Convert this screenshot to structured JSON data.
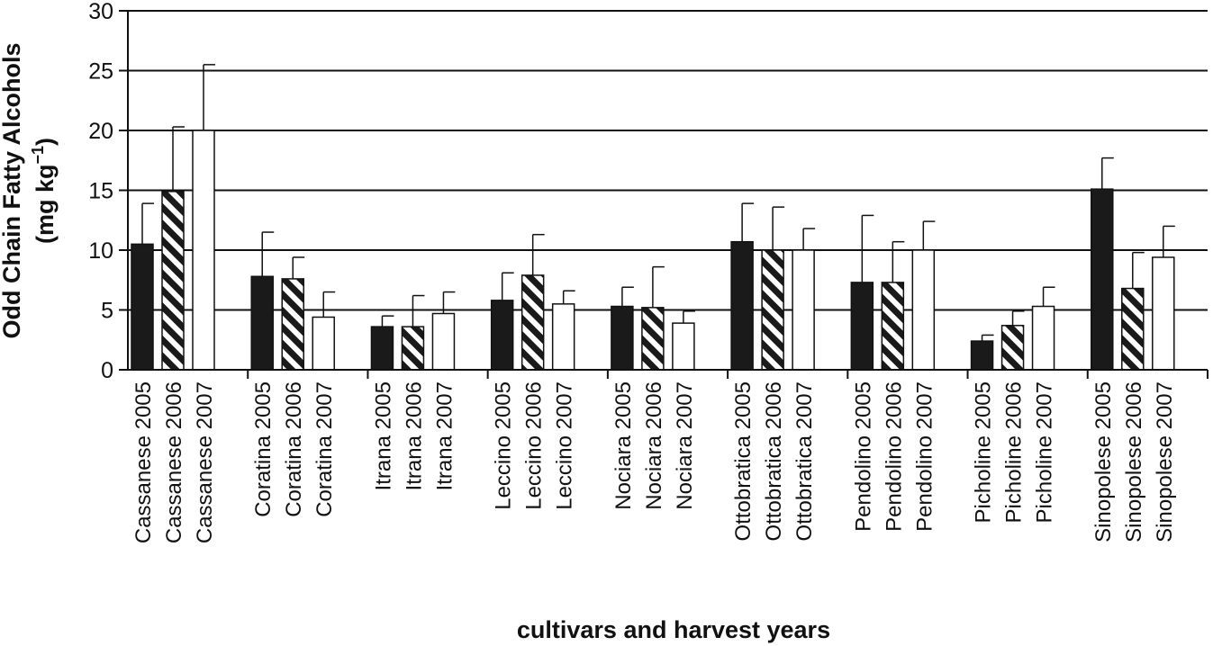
{
  "chart_data": {
    "type": "bar",
    "xlabel": "cultivars and harvest years",
    "ylabel_line1": "Odd Chain Fatty Alcohols",
    "ylabel_line2_prefix": "(mg kg",
    "ylabel_line2_sup": "−1",
    "ylabel_line2_suffix": ")",
    "ylim": [
      0,
      30
    ],
    "yticks": [
      0,
      5,
      10,
      15,
      20,
      25,
      30
    ],
    "grid": "horizontal",
    "legend": "none",
    "year_styles": [
      "solid-black",
      "black-white-diagonal-stripes",
      "white"
    ],
    "colors": {
      "bar_dark": "#1a1a1a",
      "bar_light": "#ffffff",
      "axis": "#111111"
    },
    "groups": [
      {
        "cultivar": "Cassanese",
        "labels": [
          "Cassanese 2005",
          "Cassanese 2006",
          "Cassanese 2007"
        ],
        "values": [
          10.5,
          14.9,
          20.0
        ],
        "errors": [
          3.4,
          5.4,
          5.5
        ]
      },
      {
        "cultivar": "Coratina",
        "labels": [
          "Coratina 2005",
          "Coratina 2006",
          "Coratina 2007"
        ],
        "values": [
          7.8,
          7.6,
          4.4
        ],
        "errors": [
          3.7,
          1.8,
          2.1
        ]
      },
      {
        "cultivar": "Itrana",
        "labels": [
          "Itrana 2005",
          "Itrana 2006",
          "Itrana 2007"
        ],
        "values": [
          3.6,
          3.6,
          4.7
        ],
        "errors": [
          0.9,
          2.6,
          1.8
        ]
      },
      {
        "cultivar": "Leccino",
        "labels": [
          "Leccino 2005",
          "Leccino 2006",
          "Leccino 2007"
        ],
        "values": [
          5.8,
          7.9,
          5.5
        ],
        "errors": [
          2.3,
          3.4,
          1.1
        ]
      },
      {
        "cultivar": "Nociara",
        "labels": [
          "Nociara 2005",
          "Nociara 2006",
          "Nociara 2007"
        ],
        "values": [
          5.3,
          5.2,
          3.9
        ],
        "errors": [
          1.6,
          3.4,
          1.0
        ]
      },
      {
        "cultivar": "Ottobratica",
        "labels": [
          "Ottobratica 2005",
          "Ottobratica 2006",
          "Ottobratica 2007"
        ],
        "values": [
          10.7,
          10.0,
          10.0
        ],
        "errors": [
          3.2,
          3.6,
          1.8
        ]
      },
      {
        "cultivar": "Pendolino",
        "labels": [
          "Pendolino 2005",
          "Pendolino 2006",
          "Pendolino 2007"
        ],
        "values": [
          7.3,
          7.3,
          10.0
        ],
        "errors": [
          5.6,
          3.4,
          2.4
        ]
      },
      {
        "cultivar": "Picholine",
        "labels": [
          "Picholine 2005",
          "Picholine 2006",
          "Picholine 2007"
        ],
        "values": [
          2.4,
          3.7,
          5.3
        ],
        "errors": [
          0.5,
          1.2,
          1.6
        ]
      },
      {
        "cultivar": "Sinopolese",
        "labels": [
          "Sinopolese 2005",
          "Sinopolese 2006",
          "Sinopolese 2007"
        ],
        "values": [
          15.1,
          6.8,
          9.4
        ],
        "errors": [
          2.6,
          3.0,
          2.6
        ]
      }
    ]
  }
}
